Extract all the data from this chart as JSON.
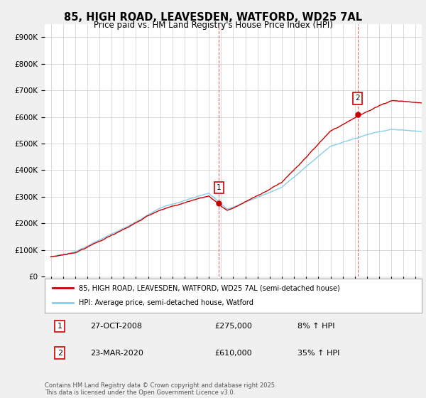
{
  "title_line1": "85, HIGH ROAD, LEAVESDEN, WATFORD, WD25 7AL",
  "title_line2": "Price paid vs. HM Land Registry's House Price Index (HPI)",
  "ytick_values": [
    0,
    100000,
    200000,
    300000,
    400000,
    500000,
    600000,
    700000,
    800000,
    900000
  ],
  "ylim": [
    0,
    950000
  ],
  "xlim_start": 1994.5,
  "xlim_end": 2025.5,
  "legend_line1": "85, HIGH ROAD, LEAVESDEN, WATFORD, WD25 7AL (semi-detached house)",
  "legend_line2": "HPI: Average price, semi-detached house, Watford",
  "line1_color": "#cc0000",
  "line2_color": "#87CEEB",
  "sale1_x": 2008.82,
  "sale1_y": 275000,
  "sale2_x": 2020.23,
  "sale2_y": 610000,
  "annotation1_num": "1",
  "annotation1_date": "27-OCT-2008",
  "annotation1_price": "£275,000",
  "annotation1_hpi": "8% ↑ HPI",
  "annotation2_num": "2",
  "annotation2_date": "23-MAR-2020",
  "annotation2_price": "£610,000",
  "annotation2_hpi": "35% ↑ HPI",
  "footnote": "Contains HM Land Registry data © Crown copyright and database right 2025.\nThis data is licensed under the Open Government Licence v3.0.",
  "bg_color": "#f0f0f0",
  "plot_bg_color": "#ffffff",
  "grid_color": "#cccccc"
}
